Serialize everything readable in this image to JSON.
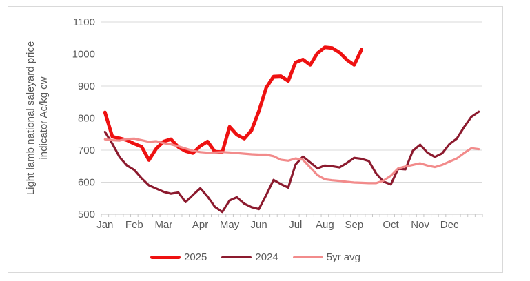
{
  "chart_data": {
    "type": "line",
    "title": "",
    "y_axis": {
      "title_lines": [
        "Light lamb national saleyard price",
        "indicator Ac/kg cw"
      ],
      "min": 500,
      "max": 1100,
      "ticks": [
        500,
        600,
        700,
        800,
        900,
        1000,
        1100
      ]
    },
    "x_axis": {
      "months": [
        "Jan",
        "Feb",
        "Mar",
        "Apr",
        "May",
        "Jun",
        "Jul",
        "Aug",
        "Sep",
        "Oct",
        "Nov",
        "Dec"
      ],
      "weeks_per_month": [
        4,
        4,
        5,
        4,
        4,
        5,
        4,
        4,
        5,
        4,
        4,
        5
      ],
      "unit": "weekly"
    },
    "grid": true,
    "legend_position": "bottom",
    "style": {
      "grid_color": "#d9d9d9",
      "axis_color": "#c6c6c6",
      "text_color": "#595959",
      "background": "#ffffff"
    },
    "series": [
      {
        "name": "2025",
        "color": "#ee1111",
        "line_width": 5,
        "values": [
          818,
          742,
          737,
          731,
          720,
          711,
          669,
          705,
          727,
          734,
          710,
          697,
          691,
          713,
          727,
          695,
          694,
          773,
          748,
          736,
          762,
          822,
          895,
          930,
          931,
          916,
          974,
          983,
          966,
          1003,
          1021,
          1019,
          1005,
          982,
          966,
          1014
        ]
      },
      {
        "name": "2024",
        "color": "#8c1a2e",
        "line_width": 3.2,
        "values": [
          757,
          720,
          678,
          652,
          638,
          612,
          590,
          580,
          570,
          564,
          568,
          538,
          560,
          581,
          555,
          523,
          507,
          543,
          553,
          533,
          522,
          516,
          560,
          607,
          594,
          583,
          655,
          680,
          662,
          643,
          652,
          650,
          646,
          660,
          676,
          673,
          666,
          627,
          602,
          593,
          642,
          640,
          698,
          717,
          692,
          679,
          690,
          719,
          736,
          772,
          804,
          820
        ]
      },
      {
        "name": "5yr avg",
        "color": "#f28b8b",
        "line_width": 3.2,
        "values": [
          734,
          731,
          730,
          735,
          736,
          731,
          726,
          728,
          722,
          718,
          712,
          705,
          698,
          694,
          692,
          693,
          694,
          693,
          691,
          689,
          687,
          686,
          686,
          681,
          670,
          667,
          674,
          670,
          646,
          622,
          609,
          606,
          604,
          601,
          599,
          598,
          597,
          597,
          605,
          620,
          643,
          649,
          654,
          659,
          652,
          647,
          654,
          664,
          674,
          691,
          706,
          703
        ]
      }
    ]
  }
}
